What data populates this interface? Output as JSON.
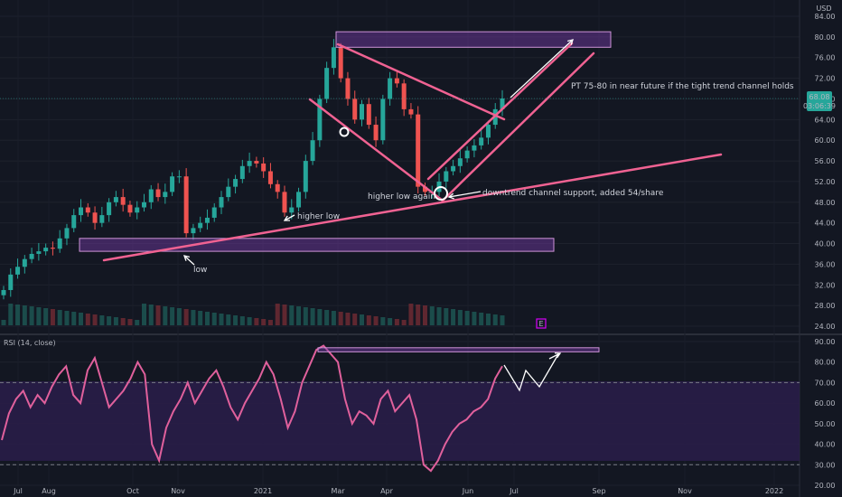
{
  "chart_data": [
    {
      "type": "candlestick",
      "currency": "USD",
      "y_ticks": [
        "84.00",
        "80.00",
        "76.00",
        "72.00",
        "68.00",
        "64.00",
        "60.00",
        "56.00",
        "52.00",
        "48.00",
        "44.00",
        "40.00",
        "36.00",
        "32.00",
        "28.00",
        "24.00"
      ],
      "ylim": [
        24,
        84
      ],
      "x_ticks": [
        "Jul",
        "Aug",
        "Oct",
        "Nov",
        "2021",
        "Mar",
        "Apr",
        "Jun",
        "Jul",
        "Sep",
        "Nov",
        "2022"
      ],
      "last_price": {
        "value": "68.08",
        "countdown": "03:06:39"
      },
      "price_closes": [
        31,
        34,
        35.5,
        37,
        38,
        38.5,
        39.2,
        39,
        41,
        43,
        45.5,
        47,
        46,
        44,
        45.5,
        48,
        49,
        47.5,
        46,
        47,
        48,
        50.5,
        49,
        50,
        53,
        53,
        42,
        43,
        44,
        45,
        47,
        49,
        51,
        52.5,
        55,
        56,
        55.5,
        54,
        51.5,
        50,
        46,
        47,
        50,
        56,
        60,
        68,
        74,
        78,
        72,
        68,
        64,
        67,
        63,
        60,
        68,
        72,
        71,
        66,
        65,
        51,
        50,
        50,
        52,
        54,
        55,
        56.5,
        58,
        59,
        60.5,
        63,
        66,
        68.08
      ],
      "zones": [
        {
          "label": "resistance zone 78-81",
          "y_range": [
            78,
            81
          ]
        },
        {
          "label": "support zone 38-41",
          "y_range": [
            38.5,
            41
          ]
        }
      ],
      "annotations": [
        "PT 75-80 in near future if the tight trend channel holds",
        "higher low again",
        "downtrend channel support, added 54/share",
        "higher low",
        "low"
      ],
      "event_marker": "E"
    },
    {
      "type": "line",
      "title": "RSI (14, close)",
      "y_ticks": [
        "90.00",
        "80.00",
        "70.00",
        "60.00",
        "50.00",
        "40.00",
        "30.00",
        "20.00"
      ],
      "ylim": [
        20,
        90
      ],
      "bands": [
        30,
        70
      ],
      "series": [
        {
          "values": [
            42,
            55,
            62,
            66,
            58,
            64,
            60,
            68,
            74,
            78,
            64,
            60,
            76,
            82,
            70,
            58,
            62,
            66,
            72,
            80,
            74,
            40,
            32,
            48,
            56,
            62,
            70,
            60,
            66,
            72,
            76,
            68,
            58,
            52,
            60,
            66,
            72,
            80,
            74,
            62,
            48,
            56,
            70,
            78,
            86,
            88,
            84,
            80,
            62,
            50,
            56,
            54,
            50,
            62,
            66,
            56,
            60,
            64,
            52,
            30,
            27,
            32,
            40,
            46,
            50,
            52,
            56,
            58,
            62,
            72,
            78
          ]
        }
      ],
      "projection_zone": [
        87,
        85
      ]
    }
  ]
}
